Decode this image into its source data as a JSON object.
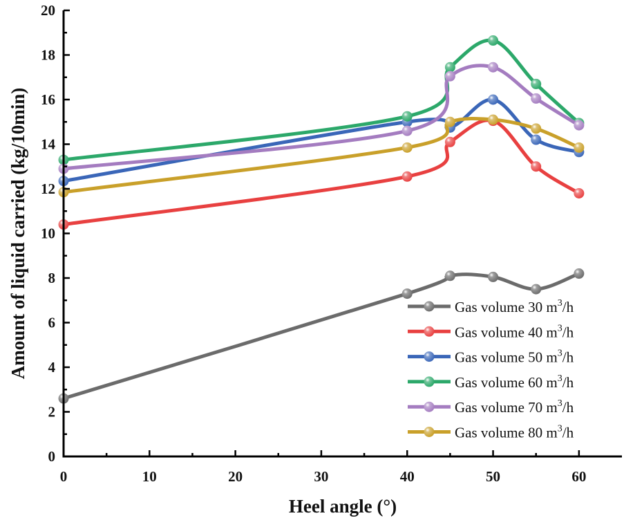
{
  "chart_data": {
    "type": "line",
    "title": "",
    "xlabel": "Heel angle (°)",
    "ylabel": "Amount of liquid carried (kg/10min)",
    "xlim": [
      0,
      65
    ],
    "ylim": [
      0,
      20
    ],
    "x_ticks": [
      "0",
      "10",
      "20",
      "30",
      "40",
      "50",
      "60"
    ],
    "y_ticks": [
      "0",
      "2",
      "4",
      "6",
      "8",
      "10",
      "12",
      "14",
      "16",
      "18",
      "20"
    ],
    "x": [
      0,
      40,
      45,
      50,
      55,
      60
    ],
    "legend_position": "bottom-right",
    "series": [
      {
        "name": "Gas volume 30 m³/h",
        "label_prefix": "Gas volume 30 m",
        "label_sup": "3",
        "label_suffix": "/h",
        "color": "#6b6b6b",
        "values": [
          2.6,
          7.3,
          8.1,
          8.05,
          7.5,
          8.2
        ]
      },
      {
        "name": "Gas volume 40 m³/h",
        "label_prefix": "Gas volume 40 m",
        "label_sup": "3",
        "label_suffix": "/h",
        "color": "#e84040",
        "values": [
          10.4,
          12.55,
          14.1,
          15.05,
          13.0,
          11.8
        ]
      },
      {
        "name": "Gas volume 50 m³/h",
        "label_prefix": "Gas volume 50 m",
        "label_sup": "3",
        "label_suffix": "/h",
        "color": "#3a66b8",
        "values": [
          12.35,
          15.0,
          14.75,
          16.0,
          14.2,
          13.65
        ]
      },
      {
        "name": "Gas volume 60 m³/h",
        "label_prefix": "Gas volume 60 m",
        "label_sup": "3",
        "label_suffix": "/h",
        "color": "#2ca86a",
        "values": [
          13.3,
          15.25,
          17.45,
          18.65,
          16.7,
          14.95
        ]
      },
      {
        "name": "Gas volume 70 m³/h",
        "label_prefix": "Gas volume 70 m",
        "label_sup": "3",
        "label_suffix": "/h",
        "color": "#a47cc0",
        "values": [
          12.9,
          14.6,
          17.05,
          17.45,
          16.05,
          14.85
        ]
      },
      {
        "name": "Gas volume 80 m³/h",
        "label_prefix": "Gas volume 80 m",
        "label_sup": "3",
        "label_suffix": "/h",
        "color": "#c9a02a",
        "values": [
          11.85,
          13.85,
          15.0,
          15.1,
          14.7,
          13.85
        ]
      }
    ]
  }
}
